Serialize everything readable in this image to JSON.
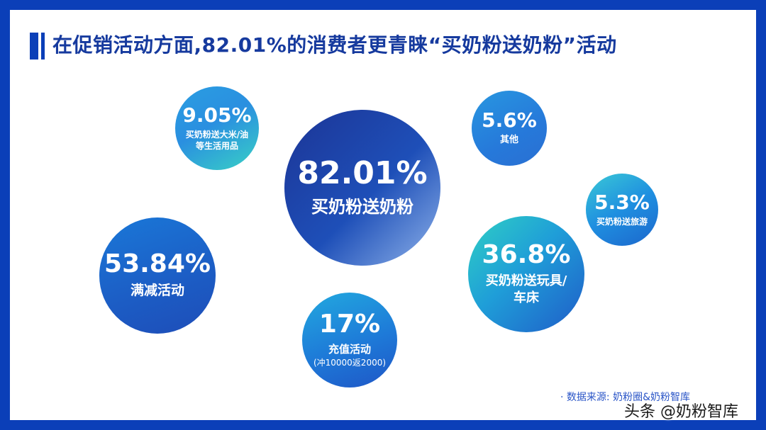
{
  "title": "在促销活动方面,82.01%的消费者更青睐“买奶粉送奶粉”活动",
  "source": "· 数据来源: 奶粉圈&奶粉智库",
  "watermark": "头条 @奶粉智库",
  "colors": {
    "frame": "#0b3fb8",
    "title": "#163a9e",
    "bubble_dark": "#1e3fa6",
    "bubble_mid": "#1a6fd6",
    "bubble_teal": "#2fc7c0"
  },
  "chart_data": {
    "type": "bubble",
    "unit": "%",
    "items": [
      {
        "value": 82.01,
        "label": "82.01%",
        "category": "买奶粉送奶粉"
      },
      {
        "value": 53.84,
        "label": "53.84%",
        "category": "满减活动"
      },
      {
        "value": 36.8,
        "label": "36.8%",
        "category": "买奶粉送玩具/车床"
      },
      {
        "value": 17,
        "label": "17%",
        "category": "充值活动",
        "note": "(冲10000返2000)"
      },
      {
        "value": 9.05,
        "label": "9.05%",
        "category": "买奶粉送大米/油等生活用品"
      },
      {
        "value": 5.6,
        "label": "5.6%",
        "category": "其他"
      },
      {
        "value": 5.3,
        "label": "5.3%",
        "category": "买奶粉送旅游"
      }
    ]
  }
}
